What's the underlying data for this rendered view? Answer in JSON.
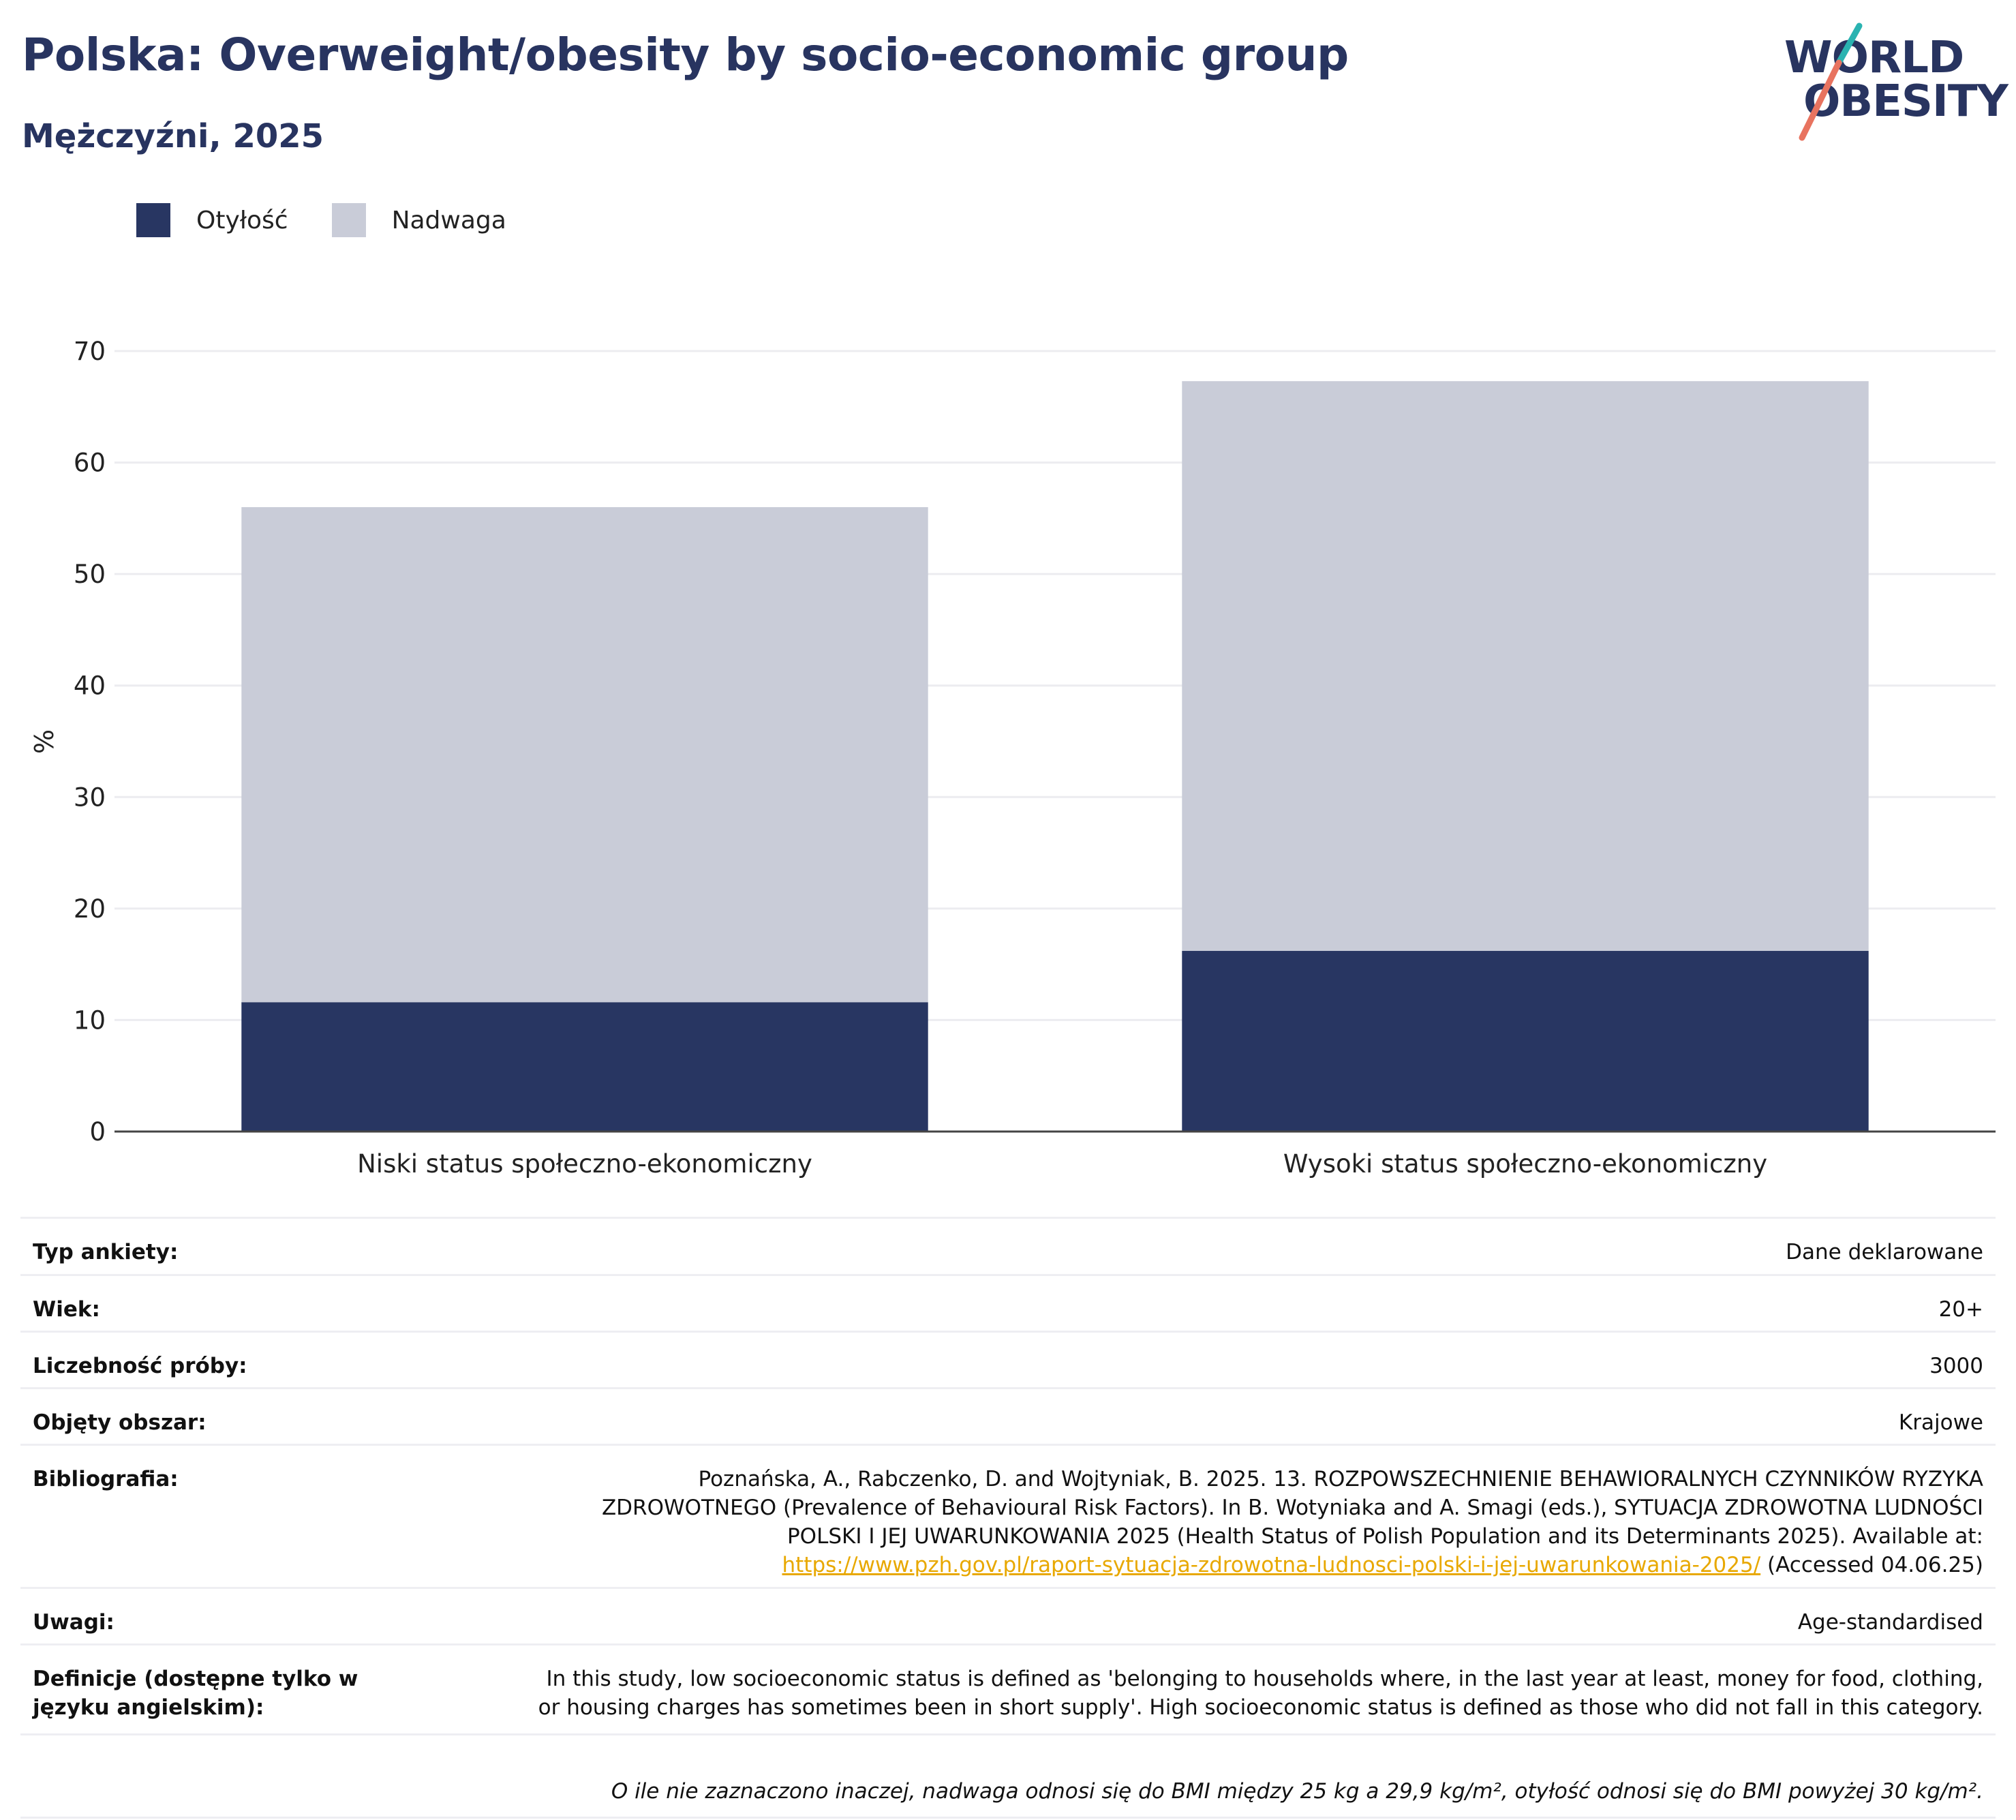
{
  "header": {
    "title": "Polska: Overweight/obesity by socio-economic group",
    "subtitle": "Mężczyźni, 2025"
  },
  "logo": {
    "line1": "WORLD",
    "line2": "OBESITY",
    "colors": {
      "text": "#283460",
      "accent_teal": "#2ab3b1",
      "accent_coral": "#e8735f"
    }
  },
  "legend": [
    {
      "label": "Otyłość",
      "color": "#283662"
    },
    {
      "label": "Nadwaga",
      "color": "#c9ccd8"
    }
  ],
  "chart_data": {
    "type": "bar",
    "stacked": true,
    "categories": [
      "Niski status społeczno-ekonomiczny",
      "Wysoki status społeczno-ekonomiczny"
    ],
    "series": [
      {
        "name": "Otyłość",
        "values": [
          11.6,
          16.2
        ],
        "color": "#283662"
      },
      {
        "name": "Nadwaga",
        "values": [
          44.4,
          51.1
        ],
        "color": "#c9ccd8"
      }
    ],
    "ylabel": "%",
    "ylim": [
      0,
      70
    ],
    "yticks": [
      0,
      10,
      20,
      30,
      40,
      50,
      60,
      70
    ],
    "grid": true,
    "legend_position": "top-left"
  },
  "meta": {
    "survey_type": {
      "label": "Typ ankiety:",
      "value": "Dane deklarowane"
    },
    "age": {
      "label": "Wiek:",
      "value": "20+"
    },
    "sample_size": {
      "label": "Liczebność próby:",
      "value": "3000"
    },
    "area": {
      "label": "Objęty obszar:",
      "value": "Krajowe"
    },
    "bibliography": {
      "label": "Bibliografia:",
      "line1": "Poznańska, A., Rabczenko, D. and Wojtyniak, B. 2025. 13. ROZPOWSZECHNIENIE BEHAWIORALNYCH CZYNNIKÓW RYZYKA",
      "line2": "ZDROWOTNEGO (Prevalence of Behavioural Risk Factors). In B. Wotyniaka and A. Smagi (eds.), SYTUACJA ZDROWOTNA LUDNOŚCI",
      "line3": "POLSKI I JEJ UWARUNKOWANIA 2025 (Health Status of Polish Population and its Determinants 2025). Available at:",
      "link": "https://www.pzh.gov.pl/raport-sytuacja-zdrowotna-ludnosci-polski-i-jej-uwarunkowania-2025/",
      "accessed": " (Accessed 04.06.25)"
    },
    "notes": {
      "label": "Uwagi:",
      "value": "Age-standardised"
    },
    "definitions": {
      "label": "Definicje (dostępne tylko w języku angielskim):",
      "line1": "In this study, low socioeconomic status is defined as 'belonging to households where, in the last year at least, money for food, clothing,",
      "line2": "or housing charges has sometimes been in short supply'. High socioeconomic status is defined as those who did not fall in this category."
    },
    "footnote": "O ile nie zaznaczono inaczej, nadwaga odnosi się do BMI między 25 kg a 29,9 kg/m², otyłość odnosi się do BMI powyżej 30 kg/m²."
  }
}
